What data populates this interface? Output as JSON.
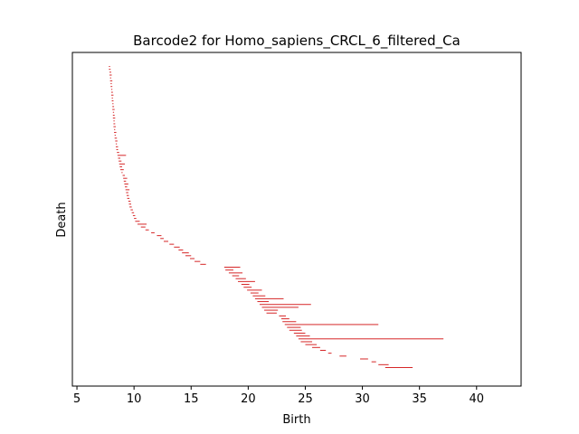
{
  "chart_data": {
    "type": "barcode",
    "title": "Barcode2 for Homo_sapiens_CRCL_6_filtered_Ca",
    "xlabel": "Birth",
    "ylabel": "Death",
    "xlim": [
      4.6,
      43.9
    ],
    "xticks": [
      5,
      10,
      15,
      20,
      25,
      30,
      35,
      40
    ],
    "bar_color": "#d62728",
    "bars": [
      {
        "birth": 7.8,
        "death": 7.9
      },
      {
        "birth": 7.8,
        "death": 7.95
      },
      {
        "birth": 7.85,
        "death": 8.0
      },
      {
        "birth": 7.85,
        "death": 8.05
      },
      {
        "birth": 7.9,
        "death": 8.0
      },
      {
        "birth": 7.9,
        "death": 8.1
      },
      {
        "birth": 7.95,
        "death": 8.05
      },
      {
        "birth": 7.95,
        "death": 8.1
      },
      {
        "birth": 8.0,
        "death": 8.1
      },
      {
        "birth": 8.0,
        "death": 8.15
      },
      {
        "birth": 8.0,
        "death": 8.2
      },
      {
        "birth": 8.05,
        "death": 8.15
      },
      {
        "birth": 8.05,
        "death": 8.2
      },
      {
        "birth": 8.1,
        "death": 8.2
      },
      {
        "birth": 8.1,
        "death": 8.25
      },
      {
        "birth": 8.1,
        "death": 8.3
      },
      {
        "birth": 8.15,
        "death": 8.25
      },
      {
        "birth": 8.15,
        "death": 8.3
      },
      {
        "birth": 8.15,
        "death": 8.35
      },
      {
        "birth": 8.2,
        "death": 8.3
      },
      {
        "birth": 8.2,
        "death": 8.35
      },
      {
        "birth": 8.2,
        "death": 8.4
      },
      {
        "birth": 8.25,
        "death": 8.35
      },
      {
        "birth": 8.25,
        "death": 8.45
      },
      {
        "birth": 8.3,
        "death": 8.4
      },
      {
        "birth": 8.3,
        "death": 8.5
      },
      {
        "birth": 8.35,
        "death": 8.55
      },
      {
        "birth": 8.4,
        "death": 8.5
      },
      {
        "birth": 8.4,
        "death": 8.6
      },
      {
        "birth": 8.45,
        "death": 8.6
      },
      {
        "birth": 8.5,
        "death": 8.7
      },
      {
        "birth": 8.55,
        "death": 9.3
      },
      {
        "birth": 8.6,
        "death": 8.8
      },
      {
        "birth": 8.65,
        "death": 8.9
      },
      {
        "birth": 8.7,
        "death": 9.2
      },
      {
        "birth": 8.75,
        "death": 8.95
      },
      {
        "birth": 8.8,
        "death": 9.1
      },
      {
        "birth": 8.9,
        "death": 9.0
      },
      {
        "birth": 9.0,
        "death": 9.2
      },
      {
        "birth": 9.05,
        "death": 9.4
      },
      {
        "birth": 9.1,
        "death": 9.3
      },
      {
        "birth": 9.15,
        "death": 9.5
      },
      {
        "birth": 9.2,
        "death": 9.4
      },
      {
        "birth": 9.25,
        "death": 9.6
      },
      {
        "birth": 9.3,
        "death": 9.5
      },
      {
        "birth": 9.35,
        "death": 9.55
      },
      {
        "birth": 9.4,
        "death": 9.6
      },
      {
        "birth": 9.5,
        "death": 9.7
      },
      {
        "birth": 9.55,
        "death": 9.75
      },
      {
        "birth": 9.6,
        "death": 9.8
      },
      {
        "birth": 9.7,
        "death": 9.9
      },
      {
        "birth": 9.8,
        "death": 10.0
      },
      {
        "birth": 9.9,
        "death": 10.1
      },
      {
        "birth": 10.0,
        "death": 10.2
      },
      {
        "birth": 10.1,
        "death": 10.5
      },
      {
        "birth": 10.3,
        "death": 11.1
      },
      {
        "birth": 10.6,
        "death": 11.0
      },
      {
        "birth": 11.0,
        "death": 11.3
      },
      {
        "birth": 11.5,
        "death": 11.8
      },
      {
        "birth": 12.0,
        "death": 12.4
      },
      {
        "birth": 12.3,
        "death": 12.6
      },
      {
        "birth": 12.6,
        "death": 13.0
      },
      {
        "birth": 13.1,
        "death": 13.5
      },
      {
        "birth": 13.5,
        "death": 14.0
      },
      {
        "birth": 13.9,
        "death": 14.3
      },
      {
        "birth": 14.2,
        "death": 14.8
      },
      {
        "birth": 14.5,
        "death": 15.0
      },
      {
        "birth": 14.9,
        "death": 15.3
      },
      {
        "birth": 15.3,
        "death": 15.8
      },
      {
        "birth": 15.8,
        "death": 16.3
      },
      {
        "birth": 17.9,
        "death": 19.3
      },
      {
        "birth": 18.0,
        "death": 18.7
      },
      {
        "birth": 18.3,
        "death": 19.5
      },
      {
        "birth": 18.6,
        "death": 19.2
      },
      {
        "birth": 18.9,
        "death": 19.8
      },
      {
        "birth": 19.1,
        "death": 20.6
      },
      {
        "birth": 19.4,
        "death": 20.1
      },
      {
        "birth": 19.6,
        "death": 20.3
      },
      {
        "birth": 19.9,
        "death": 21.2
      },
      {
        "birth": 20.2,
        "death": 20.9
      },
      {
        "birth": 20.4,
        "death": 21.5
      },
      {
        "birth": 20.6,
        "death": 23.1
      },
      {
        "birth": 20.8,
        "death": 21.8
      },
      {
        "birth": 21.0,
        "death": 25.5
      },
      {
        "birth": 21.2,
        "death": 24.4
      },
      {
        "birth": 21.4,
        "death": 22.6
      },
      {
        "birth": 21.6,
        "death": 22.5
      },
      {
        "birth": 22.7,
        "death": 23.3
      },
      {
        "birth": 22.9,
        "death": 23.6
      },
      {
        "birth": 23.0,
        "death": 24.2
      },
      {
        "birth": 23.2,
        "death": 31.4
      },
      {
        "birth": 23.4,
        "death": 24.6
      },
      {
        "birth": 23.6,
        "death": 24.7
      },
      {
        "birth": 24.0,
        "death": 25.0
      },
      {
        "birth": 24.2,
        "death": 25.4
      },
      {
        "birth": 24.4,
        "death": 37.1
      },
      {
        "birth": 24.6,
        "death": 25.6
      },
      {
        "birth": 25.0,
        "death": 26.0
      },
      {
        "birth": 25.6,
        "death": 26.3
      },
      {
        "birth": 26.3,
        "death": 26.8
      },
      {
        "birth": 27.0,
        "death": 27.3
      },
      {
        "birth": 28.0,
        "death": 28.6
      },
      {
        "birth": 29.8,
        "death": 30.5
      },
      {
        "birth": 30.8,
        "death": 31.2
      },
      {
        "birth": 31.4,
        "death": 32.3
      },
      {
        "birth": 32.0,
        "death": 34.4
      }
    ]
  }
}
